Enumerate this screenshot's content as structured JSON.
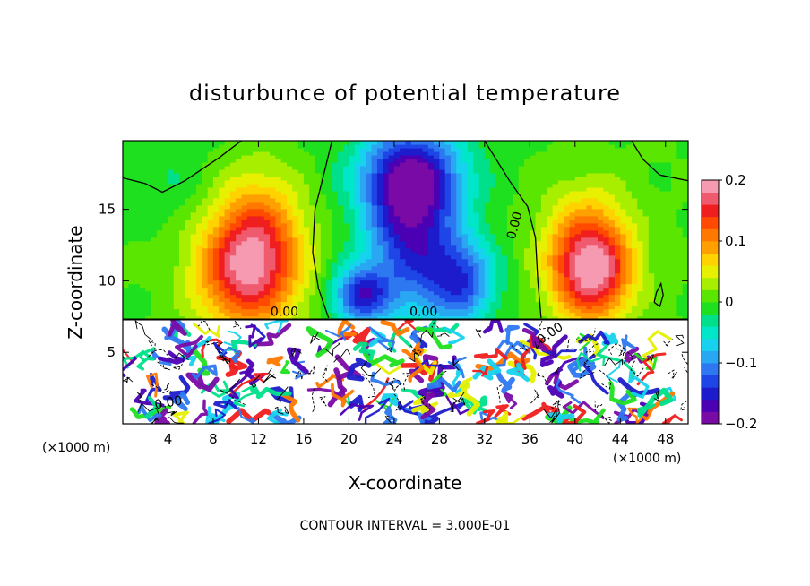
{
  "chart_data": {
    "type": "heatmap",
    "title": "disturbunce of potential temperature",
    "xlabel": "X-coordinate",
    "ylabel": "Z-coordinate",
    "x_unit_left": "(×1000 m)",
    "x_unit_right": "(×1000 m)",
    "xlim": [
      0,
      50
    ],
    "ylim": [
      0,
      19.8
    ],
    "x_ticks": [
      4,
      8,
      12,
      16,
      20,
      24,
      28,
      32,
      36,
      40,
      44,
      48
    ],
    "y_ticks": [
      5,
      10,
      15
    ],
    "colorbar": {
      "ticks": [
        0.2,
        0.1,
        0,
        -0.1,
        -0.2
      ],
      "tick_labels": [
        "0.2",
        "0.1",
        "0",
        "−0.1",
        "−0.2"
      ],
      "min": -0.2,
      "max": 0.2,
      "colors": [
        "#7a0aa6",
        "#4b00b4",
        "#1c1ccc",
        "#1e46e6",
        "#2d78f0",
        "#2aa7f2",
        "#17d2ee",
        "#00e6c8",
        "#00e08a",
        "#1ee01e",
        "#5ae600",
        "#a8ee00",
        "#e6f000",
        "#ffd200",
        "#ffa000",
        "#ff7800",
        "#ff4a00",
        "#f01e1e",
        "#f05a6e",
        "#f59ab0"
      ]
    },
    "contour_labels": [
      "0.00",
      "0.00",
      "0.00",
      "0.00",
      "0.00"
    ],
    "contour_interval_text": "CONTOUR INTERVAL = 3.000E-01",
    "upper_field_blobs": [
      {
        "x": 11,
        "z": 10.5,
        "value": 0.16,
        "sx": 4.5,
        "sz": 4
      },
      {
        "x": 12,
        "z": 14,
        "value": 0.08,
        "sx": 4,
        "sz": 4
      },
      {
        "x": 41.5,
        "z": 10.5,
        "value": 0.16,
        "sx": 3.5,
        "sz": 3.5
      },
      {
        "x": 41,
        "z": 13,
        "value": 0.07,
        "sx": 4,
        "sz": 4
      },
      {
        "x": 25.5,
        "z": 14,
        "value": -0.16,
        "sx": 4,
        "sz": 6
      },
      {
        "x": 25.5,
        "z": 17.5,
        "value": -0.1,
        "sx": 5,
        "sz": 3
      },
      {
        "x": 30,
        "z": 10,
        "value": -0.12,
        "sx": 3,
        "sz": 3
      },
      {
        "x": 21,
        "z": 9,
        "value": -0.14,
        "sx": 2.5,
        "sz": 2
      },
      {
        "x": 4,
        "z": 17,
        "value": -0.02,
        "sx": 4,
        "sz": 3
      }
    ],
    "boundary_z": 7.3
  }
}
